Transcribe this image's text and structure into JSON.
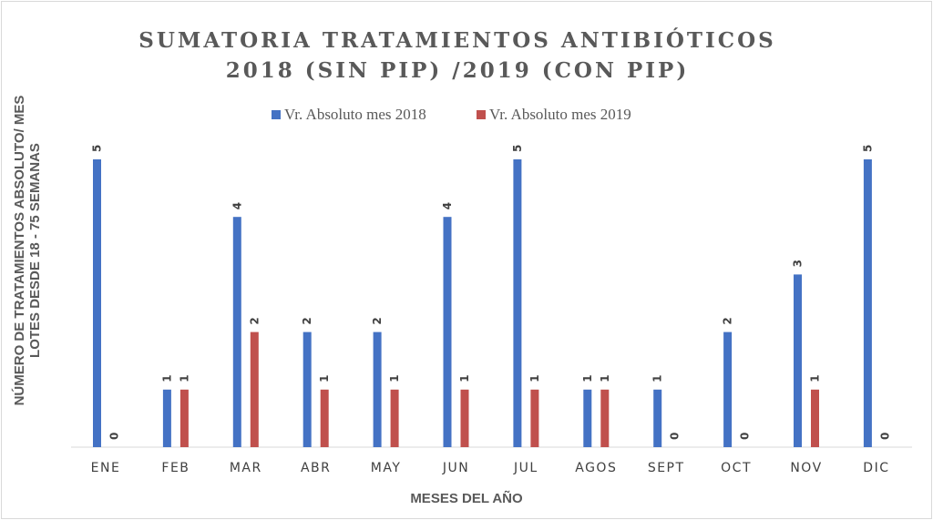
{
  "chart_data": {
    "type": "bar",
    "title_lines": [
      "SUMATORIA TRATAMIENTOS ANTIBIÓTICOS",
      "2018 (SIN PIP) /2019 (CON PIP)"
    ],
    "xlabel": "MESES DEL AÑO",
    "ylabel_lines": [
      "NÚMERO DE TRATAMIENTOS ABSOLUTO/ MES",
      "LOTES DESDE 18 - 75 SEMANAS"
    ],
    "categories": [
      "ENE",
      "FEB",
      "MAR",
      "ABR",
      "MAY",
      "JUN",
      "JUL",
      "AGOS",
      "SEPT",
      "OCT",
      "NOV",
      "DIC"
    ],
    "series": [
      {
        "name": "Vr. Absoluto mes 2018",
        "color": "#4472C4",
        "values": [
          5,
          1,
          4,
          2,
          2,
          4,
          5,
          1,
          1,
          2,
          3,
          5
        ]
      },
      {
        "name": "Vr. Absoluto mes 2019",
        "color": "#C0504D",
        "values": [
          0,
          1,
          2,
          1,
          1,
          1,
          1,
          1,
          0,
          0,
          1,
          0
        ]
      }
    ],
    "ylim": [
      0,
      5
    ],
    "grid": false,
    "legend_position": "top-center",
    "data_labels": true
  }
}
